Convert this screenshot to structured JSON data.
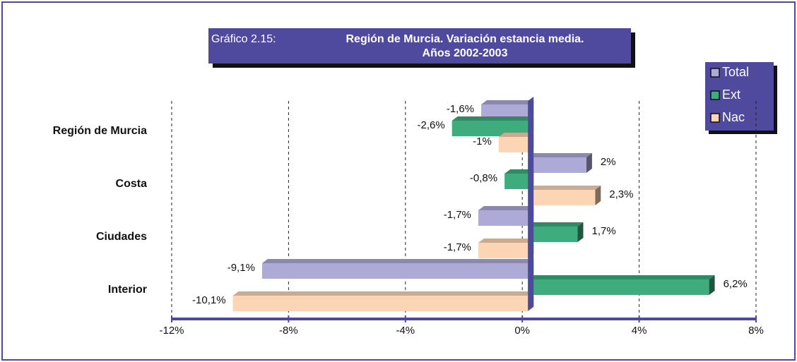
{
  "chart_data": {
    "type": "bar",
    "orientation": "horizontal",
    "title_label": "Gráfico 2.15:",
    "title": [
      "Región de Murcia. Variación estancia media.",
      "Años 2002-2003"
    ],
    "categories": [
      "Región de Murcia",
      "Costa",
      "Ciudades",
      "Interior"
    ],
    "series": [
      {
        "name": "Total",
        "color": "#aeaad8",
        "values": [
          -1.6,
          2,
          -1.7,
          -9.1
        ],
        "value_labels": [
          "-1,6%",
          "2%",
          "-1,7%",
          "-9,1%"
        ]
      },
      {
        "name": "Ext",
        "color": "#3fac7e",
        "values": [
          -2.6,
          -0.8,
          1.7,
          6.2
        ],
        "value_labels": [
          "-2,6%",
          "-0,8%",
          "1,7%",
          "6,2%"
        ]
      },
      {
        "name": "Nac",
        "color": "#fcd6b4",
        "values": [
          -1,
          2.3,
          -1.7,
          -10.1
        ],
        "value_labels": [
          "-1%",
          "2,3%",
          "-1,7%",
          "-10,1%"
        ]
      }
    ],
    "xlim": [
      -12,
      8
    ],
    "xticks": [
      {
        "value": -12,
        "label": "-12%"
      },
      {
        "value": -8,
        "label": "-8%"
      },
      {
        "value": -4,
        "label": "-4%"
      },
      {
        "value": 0,
        "label": "0%"
      },
      {
        "value": 4,
        "label": "4%"
      },
      {
        "value": 8,
        "label": "8%"
      }
    ],
    "grid": true,
    "legend": "top-right"
  }
}
